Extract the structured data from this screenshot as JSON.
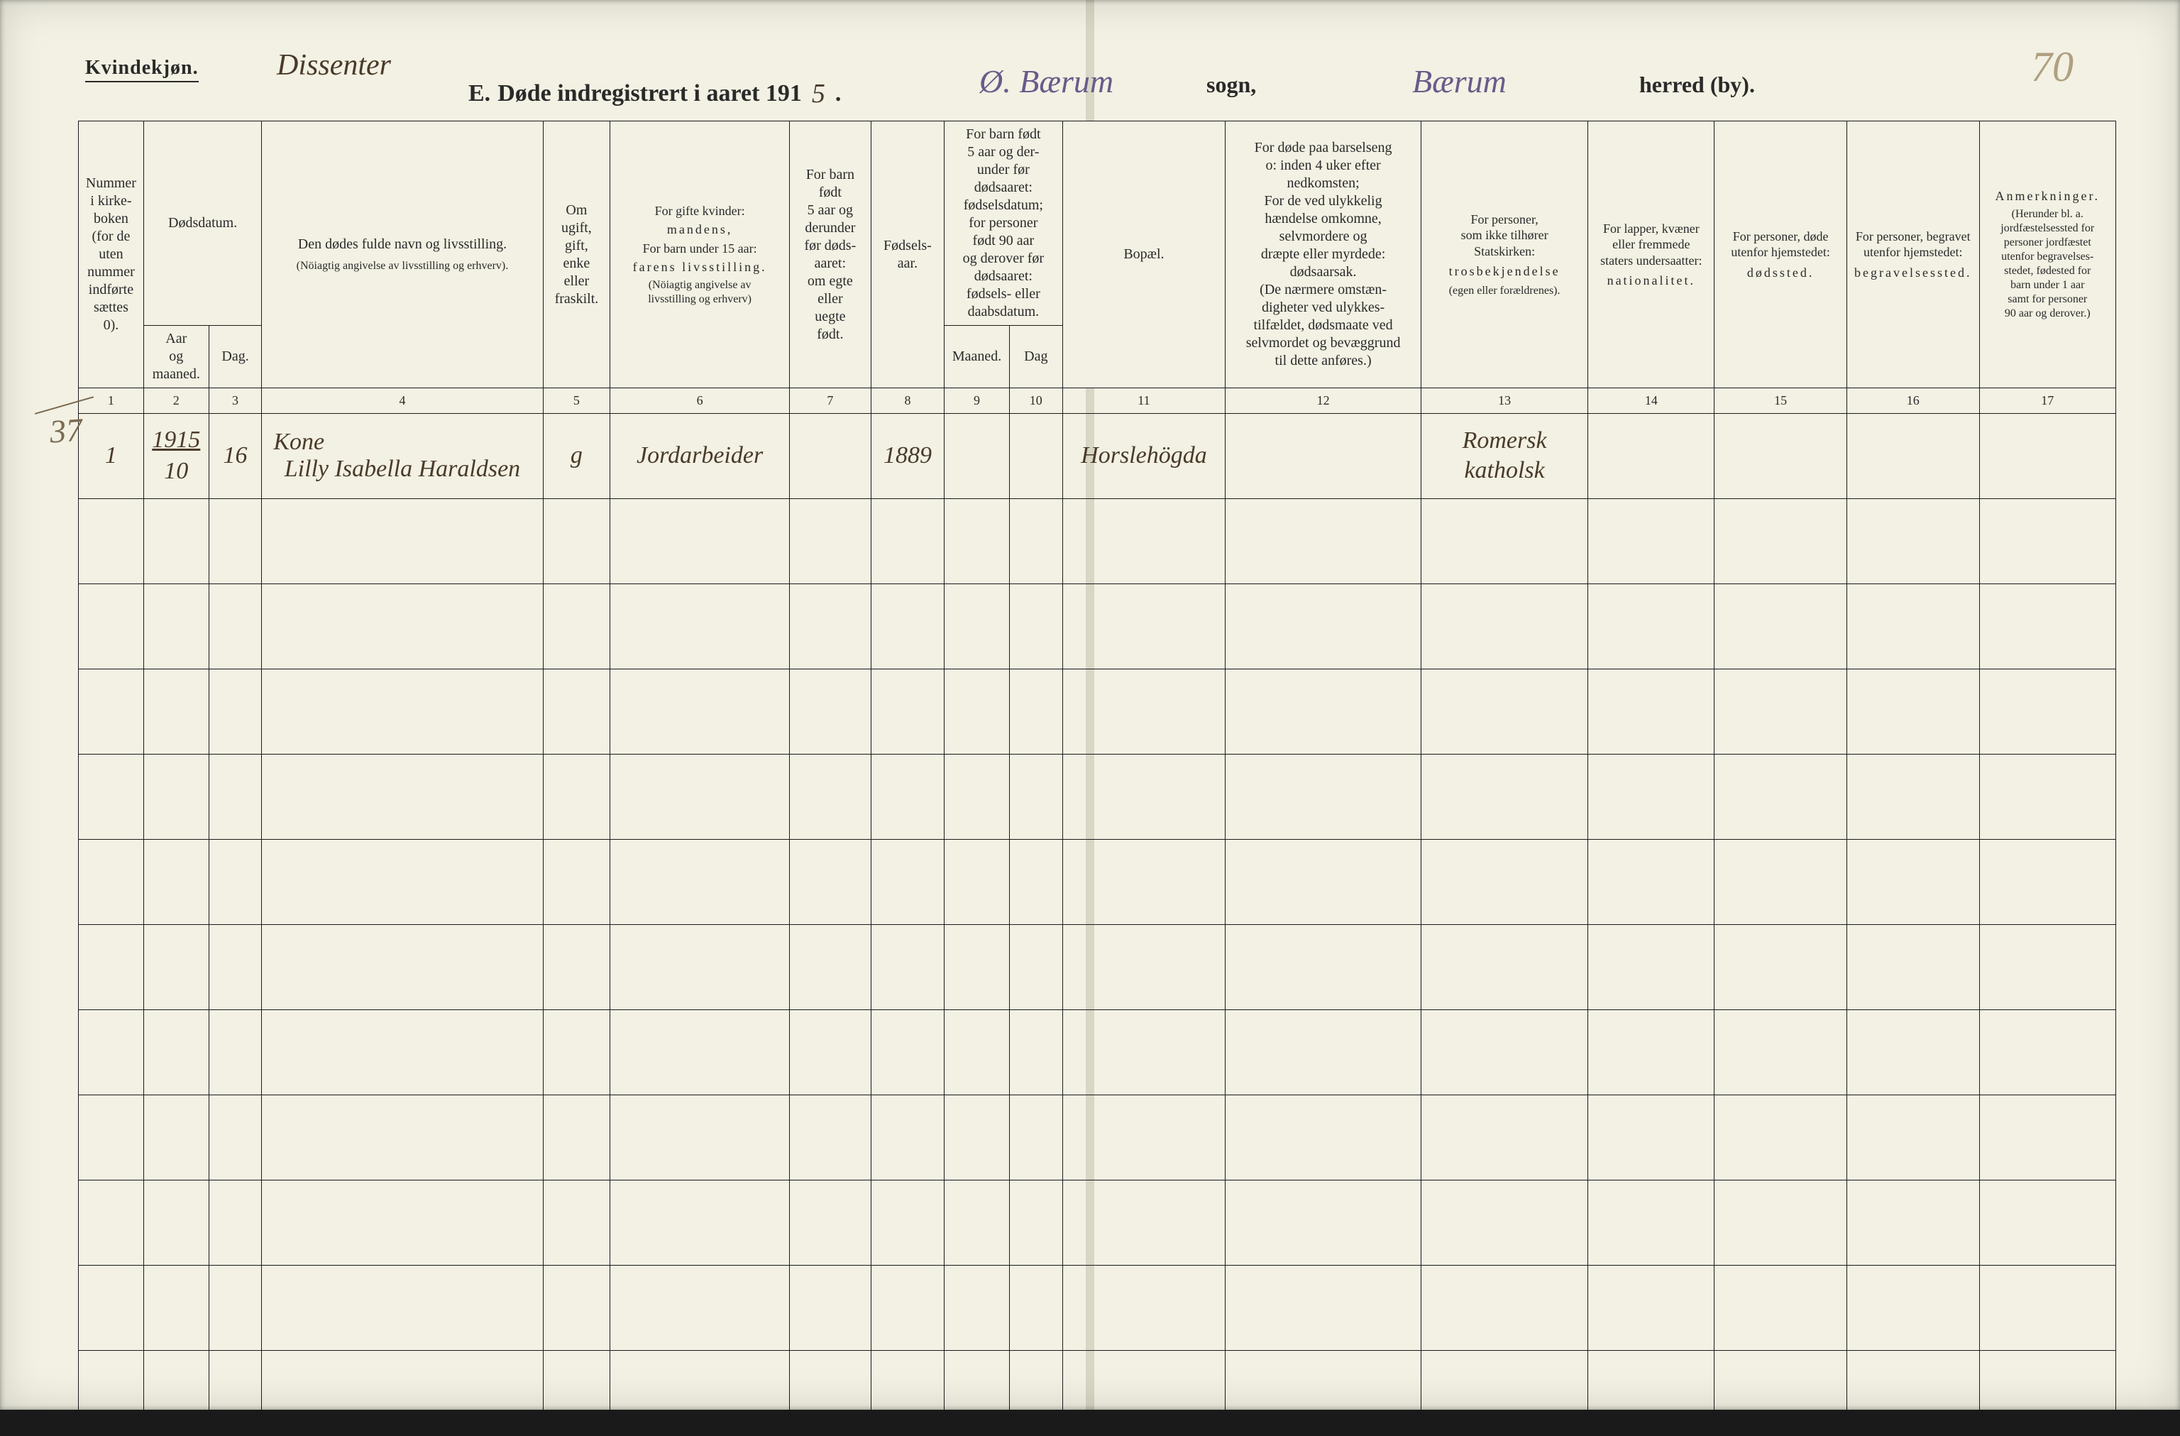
{
  "header": {
    "kvindekjon": "Kvindekjøn.",
    "dissenter": "Dissenter",
    "title_prefix": "E.",
    "title_main": "Døde indregistrert i aaret 191",
    "title_year_suffix": "5",
    "title_period": ".",
    "sogn_hand": "Ø. Bærum",
    "sogn_label": "sogn,",
    "herred_hand": "Bærum",
    "herred_label": "herred (by).",
    "page_number": "70"
  },
  "margin_note": "37",
  "columns": {
    "c1": {
      "num": "1",
      "label": "Nummer i kirke-\nboken\n(for de\nuten\nnummer\nindførte\nsættes\n0)."
    },
    "c2": {
      "num": "2",
      "group": "Dødsdatum.",
      "label": "Aar\nog\nmaaned."
    },
    "c3": {
      "num": "3",
      "label": "Dag."
    },
    "c4": {
      "num": "4",
      "label_top": "Den dødes fulde navn og livsstilling.",
      "label_sub": "(Nöiagtig angivelse av livsstilling og erhverv)."
    },
    "c5": {
      "num": "5",
      "label": "Om\nugift,\ngift,\nenke\neller\nfraskilt."
    },
    "c6": {
      "num": "6",
      "label_top": "For gifte kvinder:",
      "label_mid": "mandens,",
      "label_mid2": "For barn under 15 aar:",
      "label_mid3": "farens livsstilling.",
      "label_sub": "(Nöiagtig angivelse av\nlivsstilling og erhverv)"
    },
    "c7": {
      "num": "7",
      "label": "For barn\nfødt\n5 aar og\nderunder\nfør døds-\naaret:\nom egte\neller\nuegte\nfødt."
    },
    "c8": {
      "num": "8",
      "label": "Fødsels-\naar."
    },
    "c9": {
      "num": "9",
      "group": "For barn født\n5 aar og der-\nunder før\ndødsaaret:\nfødselsdatum;\nfor personer\nfødt 90 aar\nog derover før\ndødsaaret:\nfødsels- eller\ndaabsdatum.",
      "label": "Maaned."
    },
    "c10": {
      "num": "10",
      "label": "Dag"
    },
    "c11": {
      "num": "11",
      "label": "Bopæl."
    },
    "c12": {
      "num": "12",
      "label": "For døde paa barselseng\no: inden 4 uker efter\nnedkomsten;\nFor de ved ulykkelig\nhændelse omkomne,\nselvmordere og\ndræpte eller myrdede:\ndødsaarsak.\n(De nærmere omstæn-\ndigheter ved ulykkes-\ntilfældet, dødsmaate ved\nselvmordet og bevæggrund\ntil dette anføres.)"
    },
    "c13": {
      "num": "13",
      "label_top": "For personer,\nsom ikke tilhører\nStatskirken:",
      "label_mid": "trosbekjendelse",
      "label_sub": "(egen eller forældrenes)."
    },
    "c14": {
      "num": "14",
      "label_top": "For lapper, kvæner\neller fremmede\nstaters undersaatter:",
      "label_mid": "nationalitet."
    },
    "c15": {
      "num": "15",
      "label_top": "For personer, døde\nutenfor hjemstedet:",
      "label_mid": "dødssted."
    },
    "c16": {
      "num": "16",
      "label_top": "For personer, begravet\nutenfor hjemstedet:",
      "label_mid": "begravelsessted."
    },
    "c17": {
      "num": "17",
      "label_top": "Anmerkninger.",
      "label_sub": "(Herunder bl. a.\njordfæstelsessted for\npersoner jordfæstet\nutenfor begravelses-\nstedet, fødested for\nbarn under 1 aar\nsamt for personer\n90 aar og derover.)"
    }
  },
  "col_widths_pct": [
    3.2,
    3.2,
    2.6,
    13.8,
    3.3,
    8.8,
    4.0,
    3.6,
    3.2,
    2.6,
    8.0,
    9.6,
    8.2,
    6.2,
    6.5,
    6.5,
    6.7
  ],
  "entry": {
    "nummer": "1",
    "aar_top": "1915",
    "aar_mnd": "10",
    "dag": "16",
    "kone": "Kone",
    "navn": "Lilly Isabella Haraldsen",
    "sivilstand": "g",
    "farens": "Jordarbeider",
    "egte": "",
    "fodselsaar": "1889",
    "f_mnd": "",
    "f_dag": "",
    "bopael": "Horslehögda",
    "dodsaarsak": "",
    "tros": "Romersk katholsk",
    "nationalitet": "",
    "dodssted": "",
    "begravelse": "",
    "anm": ""
  },
  "empty_row_count": 11,
  "style": {
    "paper_color": "#f2f1e3",
    "ink_color": "#2a2a2a",
    "hand_ink": "#4a3a2a",
    "hand_ink_purple": "#6a5a8a",
    "border_color": "#1a1a1a",
    "fold_color": "#d8d6c4",
    "header_fontsize_pt": 20,
    "body_fontsize_pt": 22,
    "hand_fontsize_pt": 34
  }
}
